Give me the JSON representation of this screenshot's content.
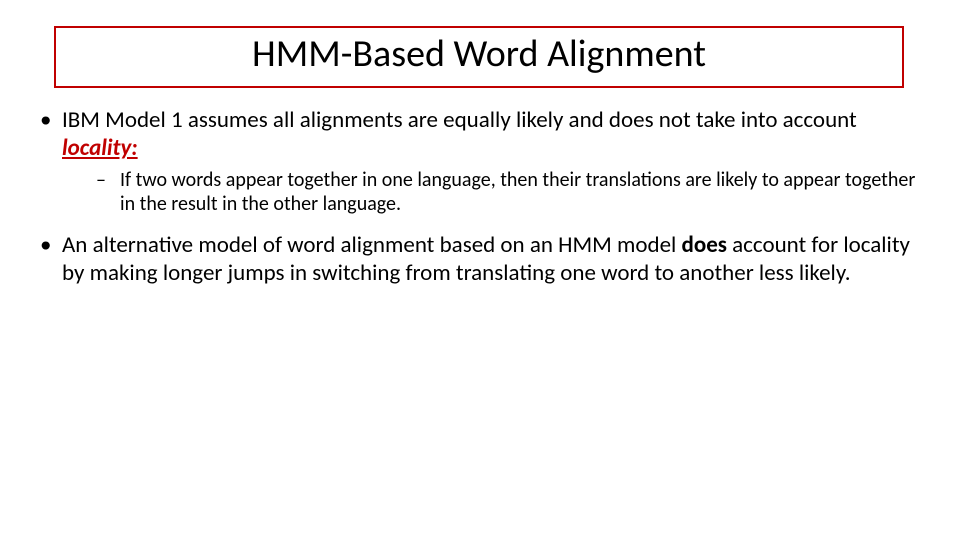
{
  "colors": {
    "accent_red": "#c00000",
    "text": "#000000",
    "background": "#ffffff"
  },
  "title": "HMM-Based Word Alignment",
  "bullets": {
    "b1_pre": "IBM Model 1 assumes all alignments are equally likely and does not take into account ",
    "b1_locality": "locality:",
    "b1_sub": "If two words appear together in one language, then their translations are likely to appear together in the result in the other language.",
    "b2_pre": "An alternative model of word alignment based on an HMM model ",
    "b2_bold": "does",
    "b2_post": " account for locality by making longer jumps in switching from translating one word to another less likely."
  }
}
